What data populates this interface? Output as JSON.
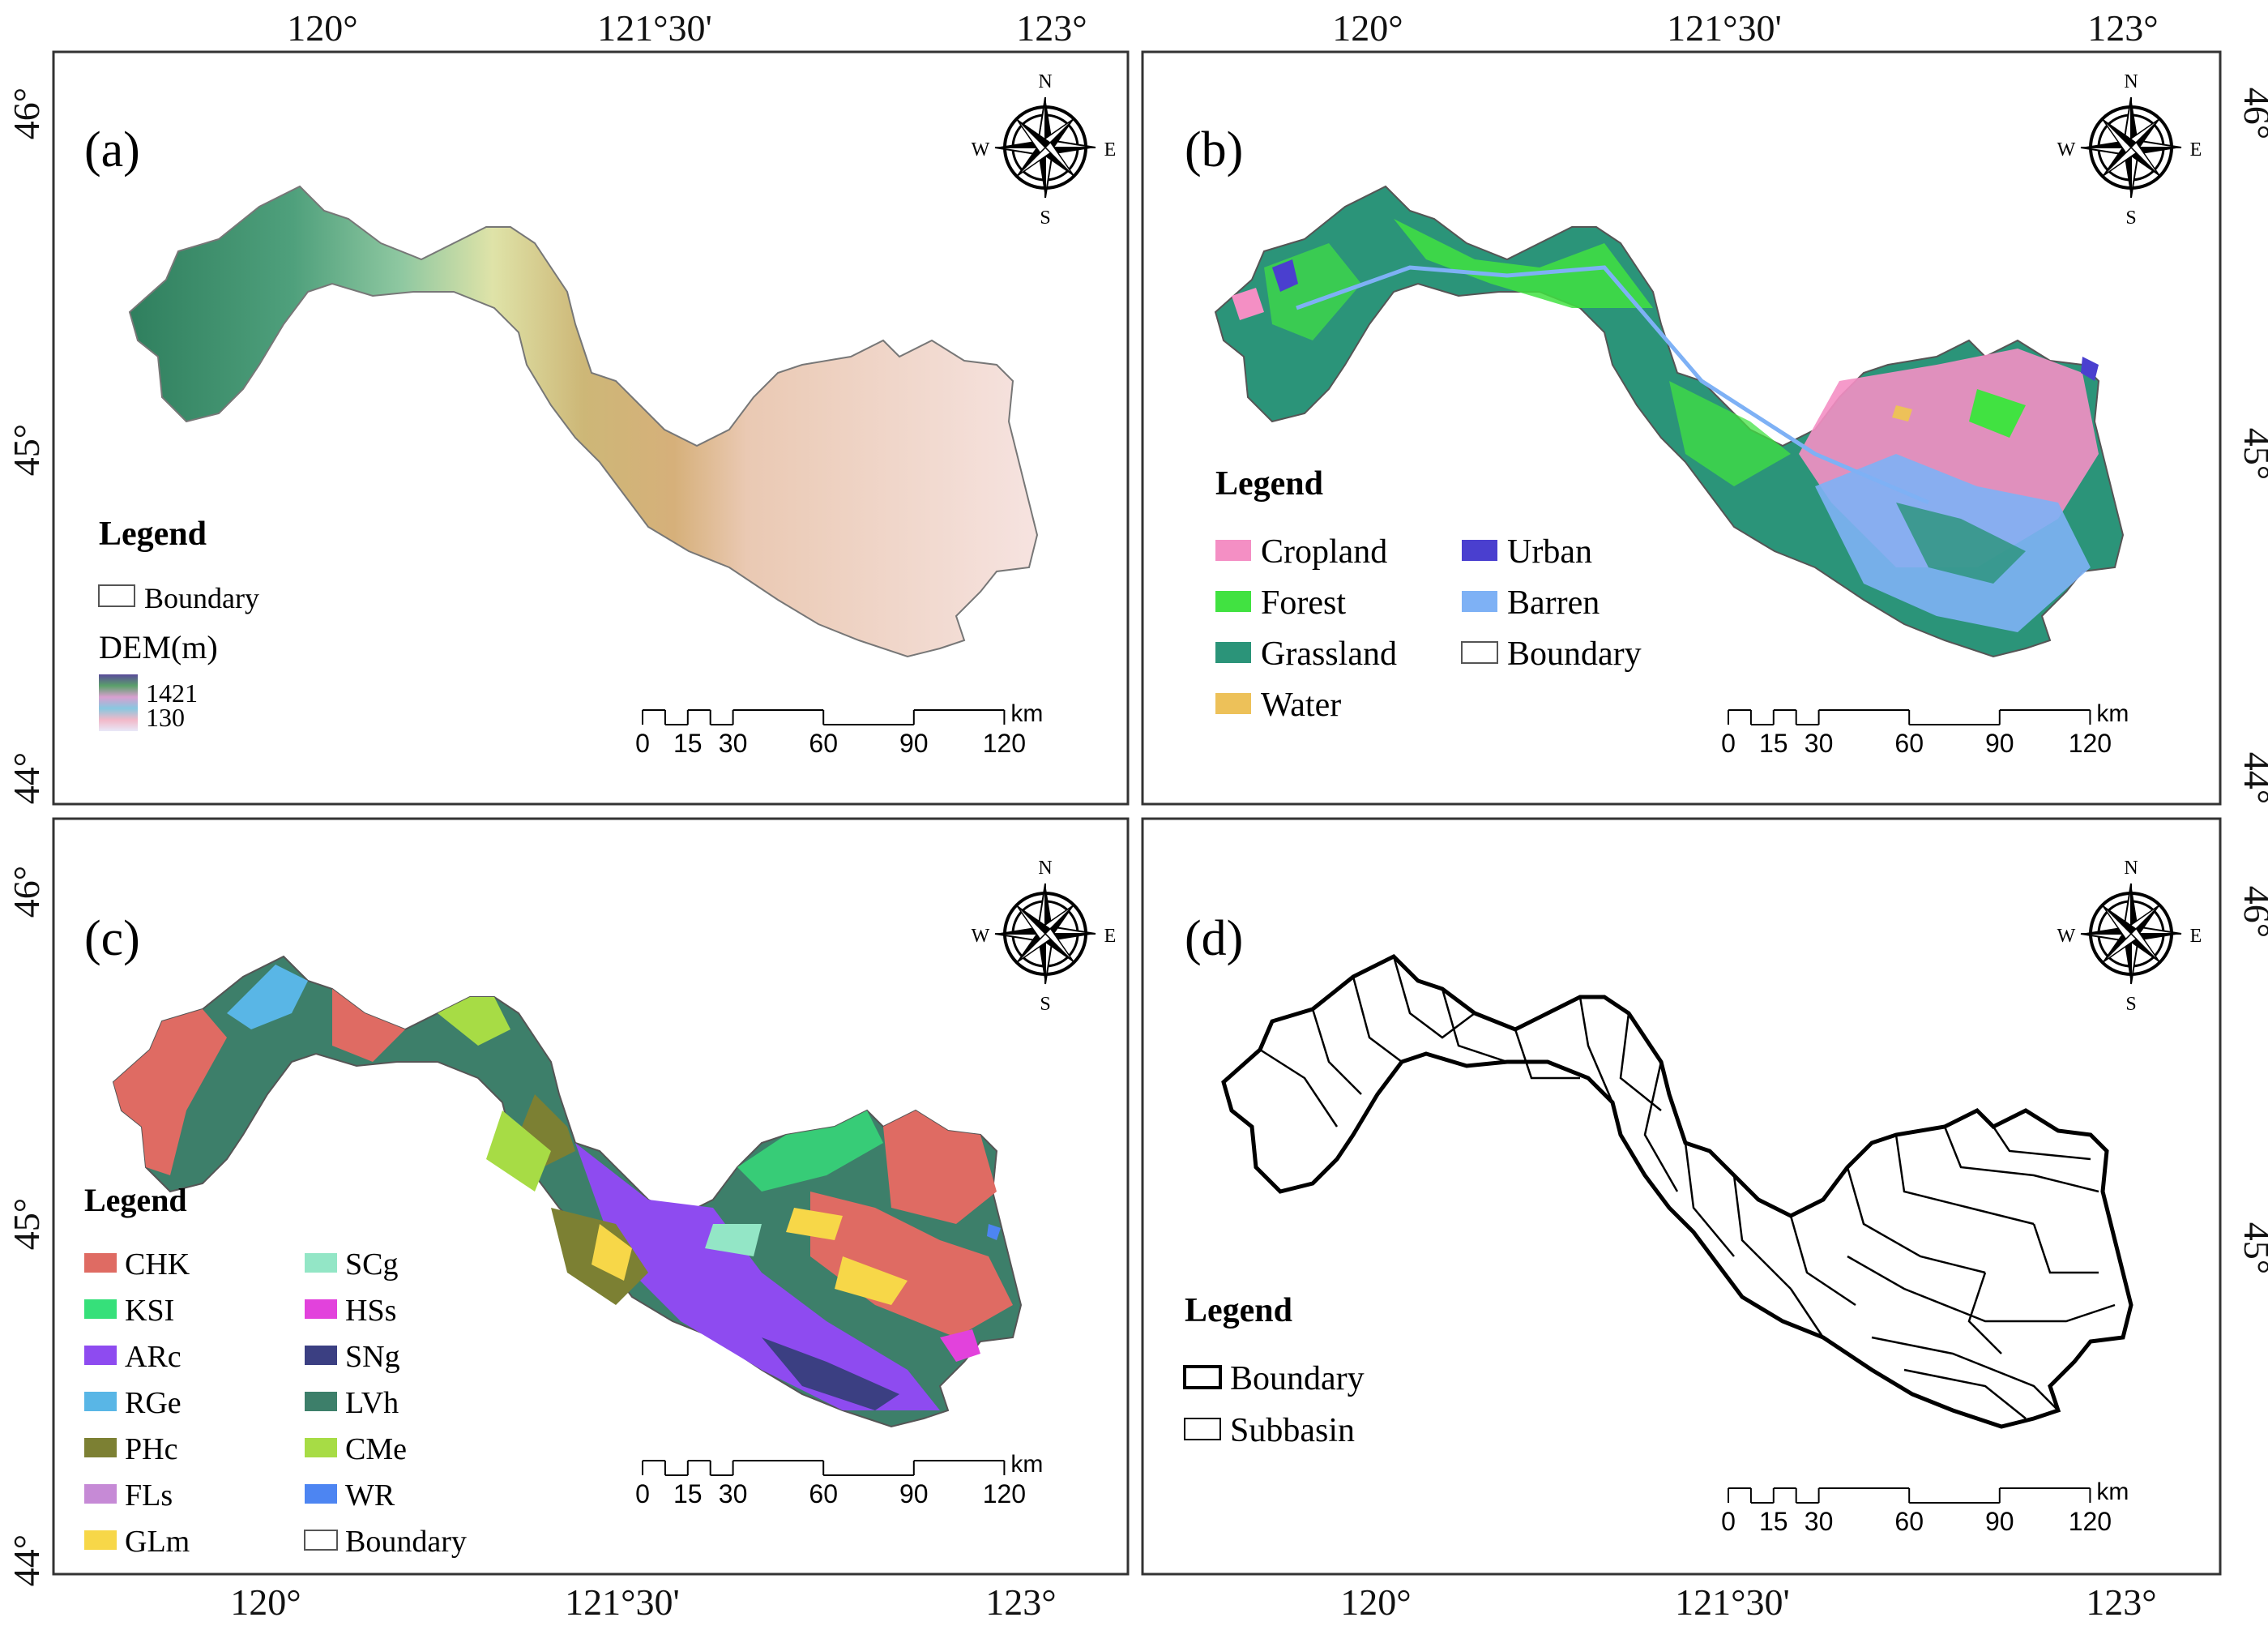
{
  "lon_ticks": [
    "120°",
    "121°30'",
    "123°"
  ],
  "lat_ticks": [
    "46°",
    "45°",
    "44°"
  ],
  "panels": [
    {
      "label": "(a)",
      "legend_title": "Legend",
      "boundary_label": "Boundary",
      "dem_title": "DEM(m)",
      "dem_max": "1421",
      "dem_min": "130"
    },
    {
      "label": "(b)",
      "legend_title": "Legend",
      "items": [
        {
          "label": "Cropland",
          "color": "#f48fc4"
        },
        {
          "label": "Urban",
          "color": "#4a3fcf"
        },
        {
          "label": "Forest",
          "color": "#41e241"
        },
        {
          "label": "Barren",
          "color": "#7eb1f5"
        },
        {
          "label": "Grassland",
          "color": "#2b9479"
        },
        {
          "label": "Boundary",
          "color": "#ffffff"
        },
        {
          "label": "Water",
          "color": "#edc159"
        }
      ]
    },
    {
      "label": "(c)",
      "legend_title": "Legend",
      "items": [
        {
          "label": "CHK",
          "color": "#df6b63"
        },
        {
          "label": "SCg",
          "color": "#93e6c6"
        },
        {
          "label": "KSI",
          "color": "#36e07a"
        },
        {
          "label": "HSs",
          "color": "#e242dc"
        },
        {
          "label": "ARc",
          "color": "#8e4bf0"
        },
        {
          "label": "SNg",
          "color": "#3b3f82"
        },
        {
          "label": "RGe",
          "color": "#59b6e6"
        },
        {
          "label": "LVh",
          "color": "#3d7f6a"
        },
        {
          "label": "PHc",
          "color": "#7c8033"
        },
        {
          "label": "CMe",
          "color": "#a7dc45"
        },
        {
          "label": "FLs",
          "color": "#c68ad6"
        },
        {
          "label": "WR",
          "color": "#4d85f2"
        },
        {
          "label": "GLm",
          "color": "#f7d748"
        },
        {
          "label": "Boundary",
          "color": "#ffffff"
        }
      ]
    },
    {
      "label": "(d)",
      "legend_title": "Legend",
      "items": [
        {
          "label": "Boundary"
        },
        {
          "label": "Subbasin"
        }
      ]
    }
  ],
  "compass": {
    "n": "N",
    "s": "S",
    "e": "E",
    "w": "W"
  },
  "scalebar": {
    "unit": "km",
    "ticks": [
      "0",
      "15",
      "30",
      "60",
      "90",
      "120"
    ]
  }
}
